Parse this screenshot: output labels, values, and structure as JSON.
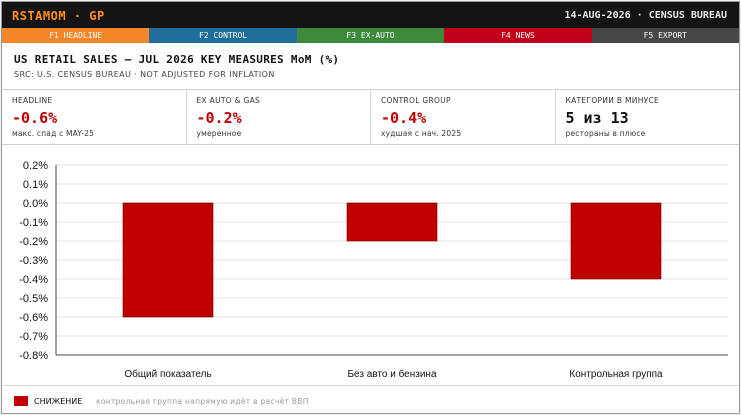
{
  "topbar": {
    "brand": "RSTAMOM · GP",
    "date_source": "14-AUG-2026 · CENSUS BUREAU"
  },
  "fkeys": [
    {
      "label": "F1 HEADLINE",
      "color": "#f4862a"
    },
    {
      "label": "F2 CONTROL",
      "color": "#1f6e99"
    },
    {
      "label": "F3 EX-AUTO",
      "color": "#3d8a3d"
    },
    {
      "label": "F4 NEWS",
      "color": "#c0001a"
    },
    {
      "label": "F5 EXPORT",
      "color": "#474747"
    }
  ],
  "header": {
    "title": "US RETAIL SALES — JUL 2026 KEY MEASURES MoM (%)",
    "subtitle": "SRC: U.S. CENSUS BUREAU · NOT ADJUSTED FOR INFLATION"
  },
  "stats": [
    {
      "label": "HEADLINE",
      "value": "-0.6%",
      "note": "макс. спад с MAY-25",
      "value_color": "#c00000"
    },
    {
      "label": "EX AUTO & GAS",
      "value": "-0.2%",
      "note": "умеренное",
      "value_color": "#c00000"
    },
    {
      "label": "CONTROL GROUP",
      "value": "-0.4%",
      "note": "худшая с нач. 2025",
      "value_color": "#c00000"
    },
    {
      "label": "КАТЕГОРИИ В МИНУСЕ",
      "value": "5 из 13",
      "note": "рестораны в плюсе",
      "value_color": "#111111"
    }
  ],
  "chart_data": {
    "type": "bar",
    "categories": [
      "Общий показатель",
      "Без авто и бензина",
      "Контрольная группа"
    ],
    "series": [
      {
        "name": "СНИЖЕНИЕ",
        "values": [
          -0.6,
          -0.2,
          -0.4
        ],
        "color": "#c00000"
      }
    ],
    "ylim": [
      -0.8,
      0.2
    ],
    "yticks": [
      0.2,
      0.1,
      0.0,
      -0.1,
      -0.2,
      -0.3,
      -0.4,
      -0.5,
      -0.6,
      -0.7,
      -0.8
    ],
    "ytick_labels": [
      "0.2%",
      "0.1%",
      "0.0%",
      "-0.1%",
      "-0.2%",
      "-0.3%",
      "-0.4%",
      "-0.5%",
      "-0.6%",
      "-0.7%",
      "-0.8%"
    ],
    "grid": true,
    "legend": "bottom-left"
  },
  "footer": {
    "legend_label": "СНИЖЕНИЕ",
    "legend_color": "#c00000",
    "note": "контрольная группа напрямую идёт в расчёт ВВП"
  }
}
